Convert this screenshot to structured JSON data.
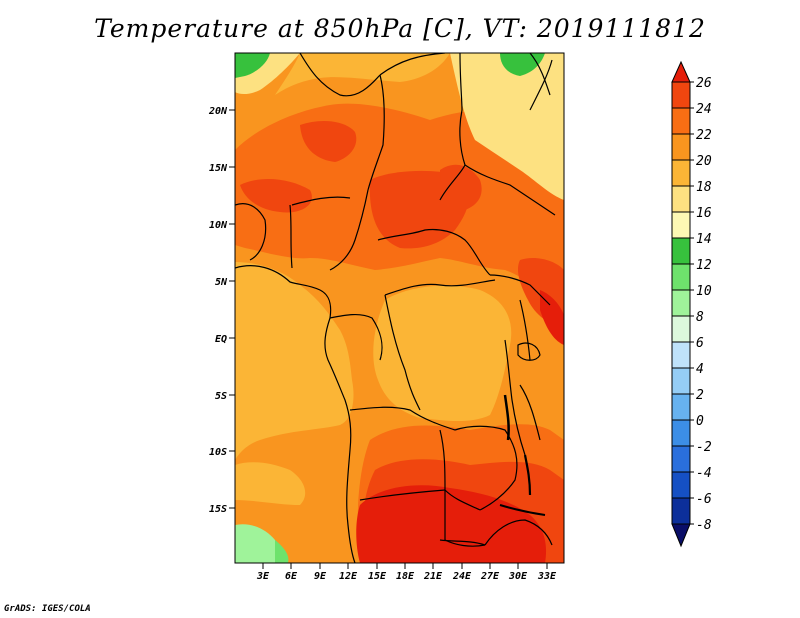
{
  "title": "Temperature at 850hPa [C], VT: 2019111812",
  "credit": "GrADS: IGES/COLA",
  "map": {
    "lat_labels": [
      "20N",
      "15N",
      "10N",
      "5N",
      "EQ",
      "5S",
      "10S",
      "15S"
    ],
    "lon_labels": [
      "3E",
      "6E",
      "9E",
      "12E",
      "15E",
      "18E",
      "21E",
      "24E",
      "27E",
      "30E",
      "33E"
    ]
  },
  "colorbar": {
    "labels": [
      "26",
      "24",
      "22",
      "20",
      "18",
      "16",
      "14",
      "12",
      "10",
      "8",
      "6",
      "4",
      "2",
      "0",
      "-2",
      "-4",
      "-6",
      "-8"
    ],
    "colors": [
      "#e51e0a",
      "#f0460f",
      "#f86e14",
      "#f9951f",
      "#fbb536",
      "#fde181",
      "#fdf8b4",
      "#37c13d",
      "#6ee26c",
      "#9ff39a",
      "#dcf8dc",
      "#bfe2fa",
      "#95cdf5",
      "#67b2ef",
      "#3c8ee6",
      "#2a6fdc",
      "#1550c4",
      "#0c2f9a",
      "#0a0e68"
    ]
  }
}
